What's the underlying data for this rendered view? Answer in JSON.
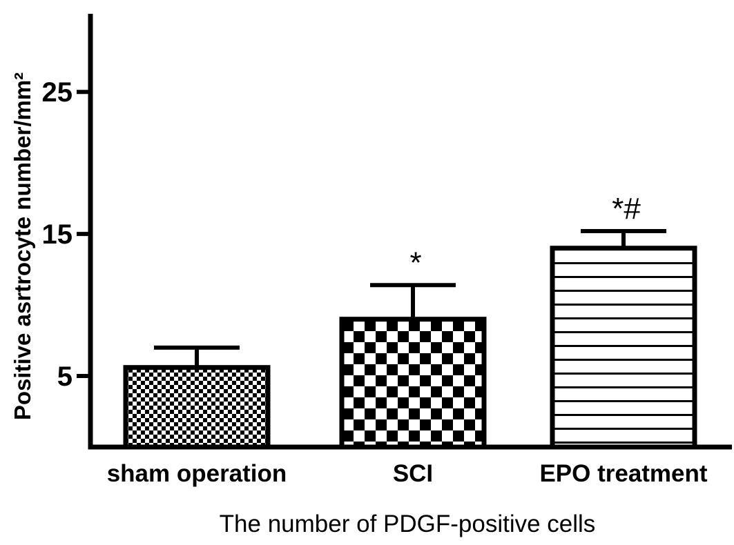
{
  "chart_data": {
    "type": "bar",
    "categories": [
      "sham operation",
      "SCI",
      "EPO treatment"
    ],
    "values": [
      5.6,
      9.0,
      14.0
    ],
    "errors": [
      1.4,
      2.4,
      1.2
    ],
    "annotations": [
      "",
      "*",
      "*#"
    ],
    "patterns": [
      "small-checker",
      "large-checker",
      "horizontal-stripes"
    ],
    "xlabel": "The number of PDGF-positive cells",
    "ylabel": "Positive asrtrocyte number/mm²",
    "yticks": [
      "5",
      "15",
      "25"
    ],
    "ylim": [
      0,
      30.5
    ],
    "grid": false,
    "colors": {
      "bar_stroke": "#000000",
      "fill": "#000000",
      "background": "#ffffff"
    }
  }
}
